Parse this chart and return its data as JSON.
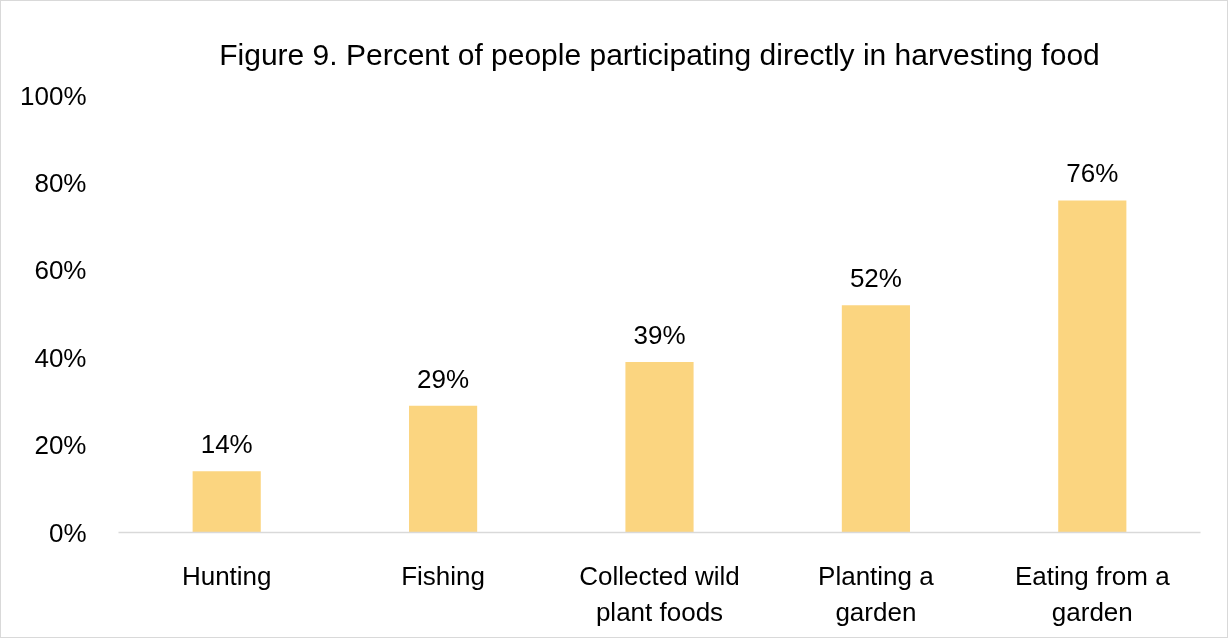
{
  "chart_data": {
    "type": "bar",
    "title": "Figure 9. Percent of people participating directly in harvesting food",
    "categories": [
      "Hunting",
      "Fishing",
      "Collected wild plant foods",
      "Planting a garden",
      "Eating from a garden"
    ],
    "values": [
      14,
      29,
      39,
      52,
      76
    ],
    "color": "#fbd580",
    "value_labels": [
      "14%",
      "29%",
      "39%",
      "52%",
      "76%"
    ],
    "ylim": [
      0,
      100
    ],
    "yticks": [
      {
        "value": 0,
        "label": "0%"
      },
      {
        "value": 20,
        "label": "20%"
      },
      {
        "value": 40,
        "label": "40%"
      },
      {
        "value": 60,
        "label": "60%"
      },
      {
        "value": 80,
        "label": "80%"
      },
      {
        "value": 100,
        "label": "100%"
      }
    ],
    "grid": false
  }
}
